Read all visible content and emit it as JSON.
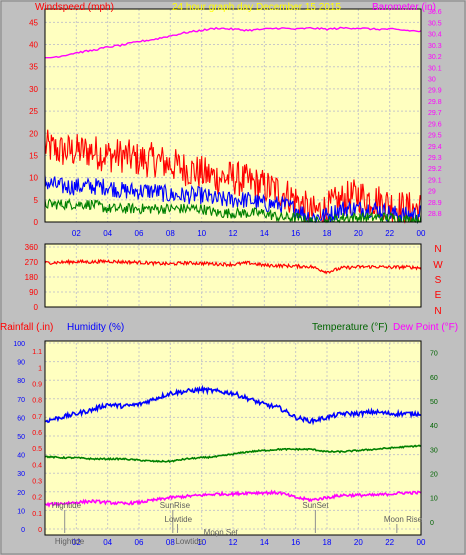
{
  "chart_data": [
    {
      "type": "line",
      "title": "24 hour graph day   December 15 2015",
      "left_label": "Windspeed (mph)",
      "right_label": "Barometer (in)",
      "x_ticks": [
        "02",
        "04",
        "06",
        "08",
        "10",
        "12",
        "14",
        "16",
        "18",
        "20",
        "22",
        "00"
      ],
      "y_left_ticks": [
        "0",
        "5",
        "10",
        "15",
        "20",
        "25",
        "30",
        "35",
        "40",
        "45"
      ],
      "y_left_range": [
        0,
        48
      ],
      "y_right_ticks": [
        "28.8",
        "28.9",
        "29",
        "29.1",
        "29.2",
        "29.3",
        "29.4",
        "29.5",
        "29.6",
        "29.7",
        "29.8",
        "29.9",
        "30",
        "30.1",
        "30.2",
        "30.3",
        "30.4",
        "30.5",
        "30.6"
      ],
      "y_right_range": [
        28.72,
        30.62
      ],
      "hours": [
        0,
        1,
        2,
        3,
        4,
        5,
        6,
        7,
        8,
        9,
        10,
        11,
        12,
        13,
        14,
        15,
        16,
        17,
        18,
        19,
        20,
        21,
        22,
        23,
        24
      ],
      "series": [
        {
          "role": "gust",
          "color": "#ff0000",
          "values": [
            17,
            16,
            16,
            16,
            15,
            15,
            14,
            14,
            13,
            12,
            11,
            10,
            10,
            9,
            8,
            7,
            5,
            2,
            3,
            5,
            6,
            5,
            4,
            3,
            3
          ]
        },
        {
          "role": "wind_avg",
          "color": "#0000ff",
          "values": [
            9,
            8,
            8,
            8,
            8,
            7,
            7,
            7,
            6,
            6,
            6,
            5,
            5,
            5,
            4,
            4,
            3,
            1,
            1.5,
            3,
            3,
            3,
            2,
            1.5,
            2
          ]
        },
        {
          "role": "wind_min",
          "color": "#008000",
          "values": [
            4,
            4,
            4,
            4,
            3,
            3,
            3,
            3,
            3,
            3,
            3,
            2,
            2,
            2,
            2,
            1,
            1,
            0,
            0,
            1,
            1,
            1,
            1,
            0.5,
            0.5
          ]
        },
        {
          "role": "barometer",
          "color": "#ff00ff",
          "values": [
            30.18,
            30.2,
            30.23,
            30.25,
            30.28,
            30.3,
            30.33,
            30.35,
            30.38,
            30.41,
            30.43,
            30.45,
            30.44,
            30.43,
            30.44,
            30.45,
            30.44,
            30.45,
            30.44,
            30.45,
            30.45,
            30.44,
            30.44,
            30.43,
            30.42
          ]
        }
      ]
    },
    {
      "type": "line",
      "title": "",
      "y_left_ticks": [
        "0",
        "90",
        "180",
        "270",
        "360"
      ],
      "y_range": [
        0,
        360
      ],
      "right_labels": [
        "N",
        "W",
        "S",
        "E",
        "N"
      ],
      "x_ticks": [
        "02",
        "04",
        "06",
        "08",
        "10",
        "12",
        "14",
        "16",
        "18",
        "20",
        "22",
        "00"
      ],
      "hours": [
        0,
        1,
        2,
        3,
        4,
        5,
        6,
        7,
        8,
        9,
        10,
        11,
        12,
        13,
        14,
        15,
        16,
        17,
        18,
        19,
        20,
        21,
        22,
        23,
        24
      ],
      "series": [
        {
          "role": "wind_direction",
          "color": "#ff0000",
          "values": [
            265,
            268,
            272,
            270,
            275,
            270,
            268,
            262,
            258,
            265,
            262,
            258,
            255,
            265,
            250,
            248,
            245,
            242,
            210,
            235,
            240,
            242,
            238,
            240,
            235
          ]
        }
      ]
    },
    {
      "type": "line",
      "labels": {
        "rain": "Rainfall (.in)",
        "humidity": "Humidity (%)",
        "temp": "Temperature (°F)",
        "dew": "Dew Point (°F)"
      },
      "y_left_ticks": [
        "0",
        "10",
        "20",
        "30",
        "40",
        "50",
        "60",
        "70",
        "80",
        "90",
        "100"
      ],
      "y_rain_ticks": [
        "0",
        "0.1",
        "0.2",
        "0.3",
        "0.4",
        "0.5",
        "0.6",
        "0.7",
        "0.8",
        "0.9",
        "1",
        "1.1"
      ],
      "y_right_ticks": [
        "0",
        "10",
        "20",
        "30",
        "40",
        "50",
        "60",
        "70"
      ],
      "y_right_range": [
        -3,
        74
      ],
      "y_left_range": [
        0,
        100
      ],
      "x_ticks": [
        "02",
        "04",
        "06",
        "08",
        "10",
        "12",
        "14",
        "16",
        "18",
        "20",
        "22",
        "00"
      ],
      "hours": [
        0,
        1,
        2,
        3,
        4,
        5,
        6,
        7,
        8,
        9,
        10,
        11,
        12,
        13,
        14,
        15,
        16,
        17,
        18,
        19,
        20,
        21,
        22,
        23,
        24
      ],
      "series": [
        {
          "role": "humidity",
          "color": "#0000ff",
          "values": [
            58,
            60,
            62,
            64,
            67,
            66,
            67,
            70,
            73,
            74,
            75,
            74,
            73,
            70,
            67,
            65,
            60,
            58,
            60,
            62,
            62,
            63,
            62,
            62,
            62
          ]
        },
        {
          "role": "temperature",
          "color": "#008000",
          "values": [
            27,
            26.5,
            26.5,
            26,
            26,
            26,
            25.5,
            25,
            25,
            26,
            26.5,
            27,
            28,
            29,
            29.5,
            30,
            30,
            30,
            29,
            29,
            29.5,
            30,
            30.5,
            31,
            31.5
          ]
        },
        {
          "role": "dewpoint",
          "color": "#ff00ff",
          "values": [
            7,
            7.5,
            8,
            8.5,
            8,
            7.5,
            8,
            9,
            10,
            10.5,
            11,
            11.5,
            11.5,
            12,
            12,
            12,
            10,
            9,
            10,
            11,
            11,
            11,
            11.5,
            12,
            12
          ]
        }
      ],
      "annotations": [
        {
          "text": "Hightide",
          "hour": 0.3,
          "row": "top"
        },
        {
          "text": "SunRise",
          "hour": 7.2,
          "row": "top"
        },
        {
          "text": "Lowtide",
          "hour": 7.5,
          "row": "mid"
        },
        {
          "text": "Moon Set",
          "hour": 10,
          "row": "low"
        },
        {
          "text": "SunSet",
          "hour": 16.3,
          "row": "top"
        },
        {
          "text": "Moon Rise",
          "hour": 21.5,
          "row": "mid"
        },
        {
          "text": "Hightide",
          "hour": 0.5,
          "row": "axis"
        },
        {
          "text": "Lowtide",
          "hour": 8.2,
          "row": "axis"
        }
      ]
    }
  ]
}
